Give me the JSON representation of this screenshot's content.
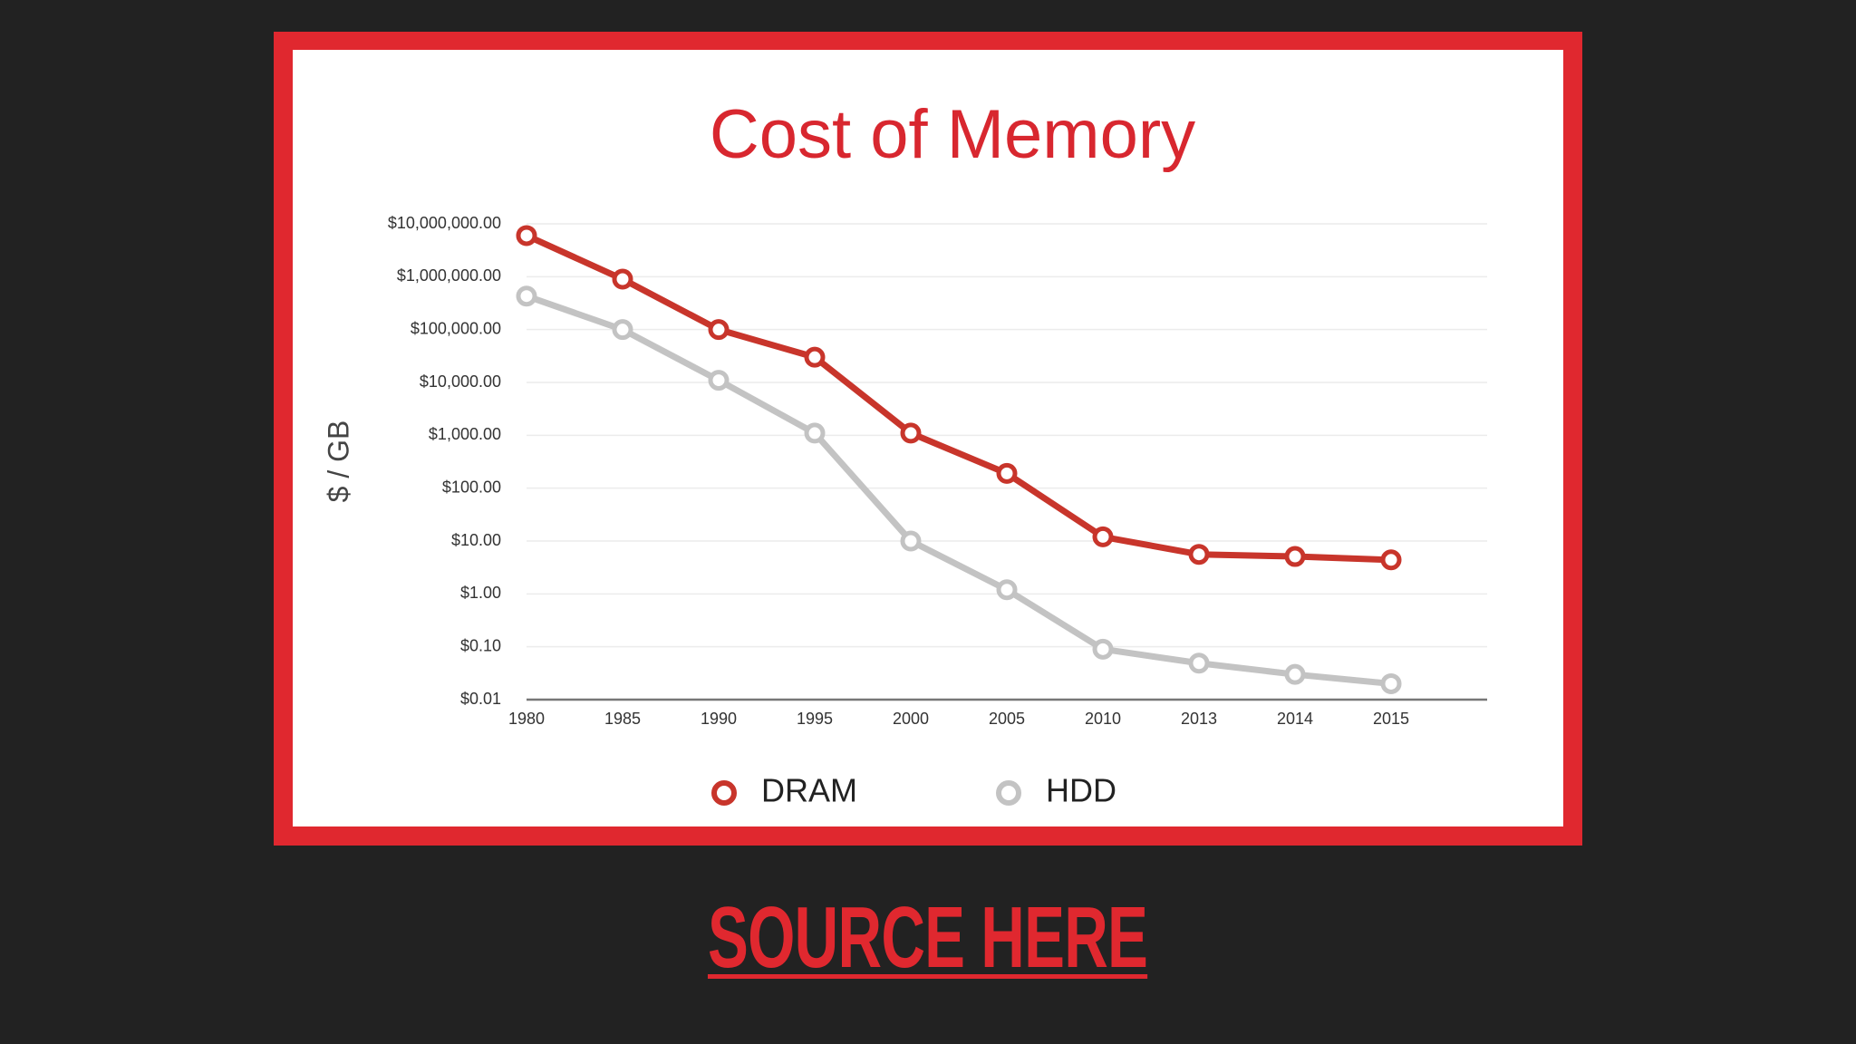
{
  "chart_data": {
    "type": "line",
    "title": "Cost of Memory",
    "y_label": "$ / GB",
    "categories": [
      "1980",
      "1985",
      "1990",
      "1995",
      "2000",
      "2005",
      "2010",
      "2013",
      "2014",
      "2015"
    ],
    "series": [
      {
        "name": "DRAM",
        "color": "#c8352b",
        "values": [
          6000000,
          900000,
          100000,
          30000,
          1100,
          190,
          12,
          5.6,
          5.1,
          4.4
        ]
      },
      {
        "name": "HDD",
        "color": "#c3c3c3",
        "values": [
          430000,
          100000,
          11000,
          1100,
          10,
          1.2,
          0.09,
          0.049,
          0.03,
          0.02
        ]
      }
    ],
    "log_scale": true,
    "ylim": [
      0.01,
      10000000
    ],
    "yticks": [
      {
        "value": 10000000,
        "label": "$10,000,000.00"
      },
      {
        "value": 1000000,
        "label": "$1,000,000.00"
      },
      {
        "value": 100000,
        "label": "$100,000.00"
      },
      {
        "value": 10000,
        "label": "$10,000.00"
      },
      {
        "value": 1000,
        "label": "$1,000.00"
      },
      {
        "value": 100,
        "label": "$100.00"
      },
      {
        "value": 10,
        "label": "$10.00"
      },
      {
        "value": 1,
        "label": "$1.00"
      },
      {
        "value": 0.1,
        "label": "$0.10"
      },
      {
        "value": 0.01,
        "label": "$0.01"
      }
    ],
    "grid": true,
    "legend": "bottom"
  },
  "source_link": "SOURCE HERE"
}
